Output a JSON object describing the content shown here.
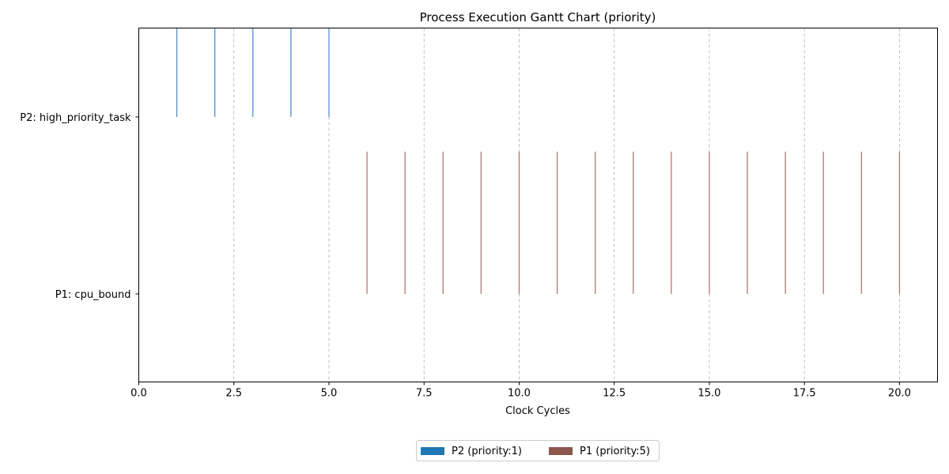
{
  "chart_data": {
    "type": "bar",
    "title": "Process Execution Gantt Chart (priority)",
    "xlabel": "Clock Cycles",
    "ylabel": "",
    "xlim": [
      0,
      21
    ],
    "x_ticks": [
      "0.0",
      "2.5",
      "5.0",
      "7.5",
      "10.0",
      "12.5",
      "15.0",
      "17.5",
      "20.0"
    ],
    "x_tick_values": [
      0,
      2.5,
      5,
      7.5,
      10,
      12.5,
      15,
      17.5,
      20
    ],
    "grid": "x dashed",
    "legend_position": "bottom-center",
    "rows": [
      {
        "label": "P2: high_priority_task",
        "color": "#4a90d9",
        "ticks": [
          1,
          2,
          3,
          4,
          5
        ]
      },
      {
        "label": "P1: cpu_bound",
        "color": "#b07a70",
        "ticks": [
          6,
          7,
          8,
          9,
          10,
          11,
          12,
          13,
          14,
          15,
          16,
          17,
          18,
          19,
          20
        ]
      }
    ],
    "legend": [
      {
        "label": "P2 (priority:1)",
        "color": "#1f77b4"
      },
      {
        "label": "P1 (priority:5)",
        "color": "#8c564b"
      }
    ]
  }
}
